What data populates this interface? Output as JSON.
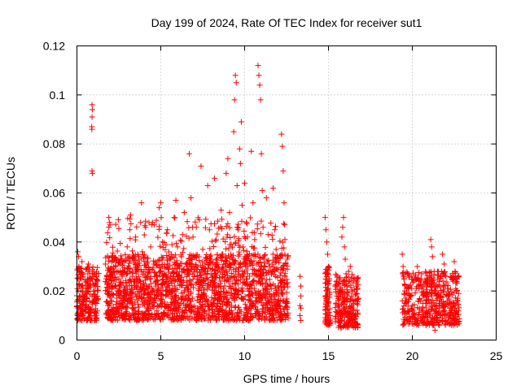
{
  "chart_data": {
    "type": "scatter",
    "title": "Day 199 of 2024, Rate Of TEC Index for receiver sut1",
    "xlabel": "GPS time / hours",
    "ylabel": "ROTI / TECUs",
    "xlim": [
      0,
      25
    ],
    "ylim": [
      0,
      0.12
    ],
    "x_ticks": [
      "0",
      "5",
      "10",
      "15",
      "20",
      "25"
    ],
    "y_ticks": [
      "0",
      "0.02",
      "0.04",
      "0.06",
      "0.08",
      "0.1",
      "0.12"
    ],
    "grid": true,
    "marker": "+",
    "color": "#ff0000",
    "series": [
      {
        "name": "sut1",
        "points": [
          [
            0.05,
            0.036
          ],
          [
            0.1,
            0.034
          ],
          [
            0.12,
            0.03
          ],
          [
            0.2,
            0.028
          ],
          [
            0.25,
            0.025
          ],
          [
            0.3,
            0.032
          ],
          [
            0.15,
            0.022
          ],
          [
            0.35,
            0.02
          ],
          [
            0.4,
            0.018
          ],
          [
            0.22,
            0.015
          ],
          [
            0.3,
            0.012
          ],
          [
            0.1,
            0.01
          ],
          [
            0.45,
            0.009
          ],
          [
            0.5,
            0.014
          ],
          [
            0.55,
            0.019
          ],
          [
            0.6,
            0.024
          ],
          [
            0.65,
            0.027
          ],
          [
            0.7,
            0.022
          ],
          [
            0.75,
            0.016
          ],
          [
            0.8,
            0.012
          ],
          [
            0.85,
            0.009
          ],
          [
            0.9,
            0.018
          ],
          [
            0.95,
            0.023
          ],
          [
            1.0,
            0.026
          ],
          [
            1.05,
            0.02
          ],
          [
            1.1,
            0.015
          ],
          [
            1.15,
            0.011
          ],
          [
            1.2,
            0.024
          ],
          [
            1.25,
            0.017
          ],
          [
            0.58,
            0.008
          ],
          [
            0.68,
            0.031
          ],
          [
            0.9,
            0.096
          ],
          [
            0.92,
            0.094
          ],
          [
            0.9,
            0.091
          ],
          [
            0.88,
            0.087
          ],
          [
            0.89,
            0.086
          ],
          [
            0.9,
            0.069
          ],
          [
            0.92,
            0.068
          ],
          [
            1.7,
            0.031
          ],
          [
            1.75,
            0.025
          ],
          [
            1.8,
            0.019
          ],
          [
            1.85,
            0.014
          ],
          [
            1.9,
            0.01
          ],
          [
            1.95,
            0.022
          ],
          [
            2.0,
            0.028
          ],
          [
            1.9,
            0.05
          ],
          [
            1.95,
            0.048
          ],
          [
            1.9,
            0.046
          ],
          [
            2.05,
            0.016
          ],
          [
            2.1,
            0.012
          ],
          [
            2.15,
            0.008
          ],
          [
            2.2,
            0.024
          ],
          [
            2.3,
            0.03
          ],
          [
            2.4,
            0.02
          ],
          [
            2.5,
            0.015
          ],
          [
            2.6,
            0.033
          ],
          [
            2.7,
            0.026
          ],
          [
            2.8,
            0.018
          ],
          [
            2.9,
            0.011
          ],
          [
            3.0,
            0.038
          ],
          [
            3.1,
            0.029
          ],
          [
            3.15,
            0.045
          ],
          [
            3.2,
            0.051
          ],
          [
            3.25,
            0.021
          ],
          [
            3.3,
            0.013
          ],
          [
            3.4,
            0.034
          ],
          [
            3.5,
            0.042
          ],
          [
            3.6,
            0.025
          ],
          [
            3.7,
            0.017
          ],
          [
            3.8,
            0.048
          ],
          [
            3.85,
            0.056
          ],
          [
            3.9,
            0.036
          ],
          [
            4.0,
            0.028
          ],
          [
            4.1,
            0.046
          ],
          [
            4.2,
            0.019
          ],
          [
            4.3,
            0.012
          ],
          [
            4.4,
            0.038
          ],
          [
            4.5,
            0.048
          ],
          [
            4.6,
            0.031
          ],
          [
            4.7,
            0.022
          ],
          [
            4.8,
            0.014
          ],
          [
            4.9,
            0.054
          ],
          [
            5.0,
            0.056
          ],
          [
            5.1,
            0.04
          ],
          [
            5.2,
            0.027
          ],
          [
            5.3,
            0.018
          ],
          [
            5.4,
            0.045
          ],
          [
            5.5,
            0.034
          ],
          [
            5.6,
            0.024
          ],
          [
            5.7,
            0.011
          ],
          [
            5.8,
            0.05
          ],
          [
            5.9,
            0.057
          ],
          [
            6.0,
            0.038
          ],
          [
            6.1,
            0.026
          ],
          [
            6.2,
            0.015
          ],
          [
            6.3,
            0.043
          ],
          [
            6.4,
            0.052
          ],
          [
            6.5,
            0.031
          ],
          [
            6.6,
            0.021
          ],
          [
            6.7,
            0.076
          ],
          [
            6.8,
            0.058
          ],
          [
            6.9,
            0.046
          ],
          [
            7.0,
            0.034
          ],
          [
            7.1,
            0.023
          ],
          [
            7.2,
            0.013
          ],
          [
            7.3,
            0.049
          ],
          [
            7.4,
            0.071
          ],
          [
            7.5,
            0.037
          ],
          [
            7.6,
            0.027
          ],
          [
            7.7,
            0.018
          ],
          [
            7.8,
            0.063
          ],
          [
            7.9,
            0.045
          ],
          [
            8.0,
            0.032
          ],
          [
            8.1,
            0.022
          ],
          [
            8.2,
            0.066
          ],
          [
            8.3,
            0.041
          ],
          [
            8.4,
            0.028
          ],
          [
            8.5,
            0.016
          ],
          [
            8.6,
            0.053
          ],
          [
            8.7,
            0.035
          ],
          [
            8.8,
            0.024
          ],
          [
            8.9,
            0.068
          ],
          [
            9.0,
            0.074
          ],
          [
            9.1,
            0.052
          ],
          [
            9.2,
            0.039
          ],
          [
            9.3,
            0.026
          ],
          [
            9.35,
            0.085
          ],
          [
            9.4,
            0.098
          ],
          [
            9.45,
            0.108
          ],
          [
            9.5,
            0.105
          ],
          [
            9.55,
            0.063
          ],
          [
            9.6,
            0.045
          ],
          [
            9.65,
            0.031
          ],
          [
            9.7,
            0.078
          ],
          [
            9.75,
            0.072
          ],
          [
            9.8,
            0.089
          ],
          [
            9.85,
            0.055
          ],
          [
            9.9,
            0.038
          ],
          [
            9.95,
            0.027
          ],
          [
            10.0,
            0.064
          ],
          [
            10.1,
            0.048
          ],
          [
            10.2,
            0.034
          ],
          [
            10.3,
            0.022
          ],
          [
            10.4,
            0.077
          ],
          [
            10.5,
            0.056
          ],
          [
            10.6,
            0.041
          ],
          [
            10.7,
            0.028
          ],
          [
            10.8,
            0.112
          ],
          [
            10.85,
            0.108
          ],
          [
            10.9,
            0.104
          ],
          [
            10.95,
            0.098
          ],
          [
            11.0,
            0.076
          ],
          [
            11.05,
            0.061
          ],
          [
            11.1,
            0.046
          ],
          [
            11.15,
            0.033
          ],
          [
            11.2,
            0.021
          ],
          [
            11.3,
            0.058
          ],
          [
            11.4,
            0.043
          ],
          [
            11.5,
            0.03
          ],
          [
            11.6,
            0.018
          ],
          [
            11.7,
            0.062
          ],
          [
            11.8,
            0.045
          ],
          [
            11.9,
            0.032
          ],
          [
            12.0,
            0.021
          ],
          [
            12.1,
            0.014
          ],
          [
            12.2,
            0.084
          ],
          [
            12.25,
            0.079
          ],
          [
            12.3,
            0.069
          ],
          [
            12.35,
            0.056
          ],
          [
            12.4,
            0.041
          ],
          [
            12.45,
            0.031
          ],
          [
            12.5,
            0.023
          ],
          [
            12.55,
            0.015
          ],
          [
            12.6,
            0.009
          ],
          [
            13.3,
            0.026
          ],
          [
            13.35,
            0.022
          ],
          [
            13.35,
            0.018
          ],
          [
            13.3,
            0.014
          ],
          [
            13.35,
            0.013
          ],
          [
            13.3,
            0.01
          ],
          [
            13.35,
            0.008
          ],
          [
            14.8,
            0.05
          ],
          [
            14.85,
            0.045
          ],
          [
            14.9,
            0.04
          ],
          [
            14.95,
            0.035
          ],
          [
            15.0,
            0.03
          ],
          [
            15.05,
            0.025
          ],
          [
            14.9,
            0.02
          ],
          [
            15.0,
            0.015
          ],
          [
            15.1,
            0.01
          ],
          [
            15.05,
            0.007
          ],
          [
            15.4,
            0.022
          ],
          [
            15.5,
            0.018
          ],
          [
            15.6,
            0.014
          ],
          [
            15.7,
            0.011
          ],
          [
            15.8,
            0.042
          ],
          [
            15.85,
            0.046
          ],
          [
            15.9,
            0.05
          ],
          [
            15.95,
            0.038
          ],
          [
            16.0,
            0.033
          ],
          [
            16.05,
            0.027
          ],
          [
            16.1,
            0.022
          ],
          [
            16.15,
            0.017
          ],
          [
            16.2,
            0.013
          ],
          [
            16.25,
            0.009
          ],
          [
            16.3,
            0.007
          ],
          [
            16.35,
            0.025
          ],
          [
            16.4,
            0.02
          ],
          [
            16.45,
            0.016
          ],
          [
            16.5,
            0.012
          ],
          [
            16.55,
            0.01
          ],
          [
            16.6,
            0.005
          ],
          [
            16.65,
            0.019
          ],
          [
            16.7,
            0.015
          ],
          [
            16.75,
            0.011
          ],
          [
            16.2,
            0.028
          ],
          [
            16.3,
            0.03
          ],
          [
            19.4,
            0.035
          ],
          [
            19.45,
            0.03
          ],
          [
            19.5,
            0.025
          ],
          [
            19.55,
            0.02
          ],
          [
            19.6,
            0.015
          ],
          [
            19.65,
            0.011
          ],
          [
            19.7,
            0.008
          ],
          [
            19.8,
            0.022
          ],
          [
            19.9,
            0.018
          ],
          [
            20.0,
            0.014
          ],
          [
            20.1,
            0.011
          ],
          [
            20.2,
            0.025
          ],
          [
            20.3,
            0.03
          ],
          [
            20.4,
            0.021
          ],
          [
            20.5,
            0.016
          ],
          [
            20.6,
            0.012
          ],
          [
            20.7,
            0.009
          ],
          [
            20.8,
            0.024
          ],
          [
            20.9,
            0.019
          ],
          [
            21.0,
            0.015
          ],
          [
            21.1,
            0.041
          ],
          [
            21.15,
            0.038
          ],
          [
            21.2,
            0.034
          ],
          [
            21.3,
            0.028
          ],
          [
            21.4,
            0.022
          ],
          [
            21.5,
            0.017
          ],
          [
            21.6,
            0.013
          ],
          [
            21.7,
            0.01
          ],
          [
            21.8,
            0.035
          ],
          [
            21.9,
            0.031
          ],
          [
            22.0,
            0.026
          ],
          [
            22.1,
            0.021
          ],
          [
            22.2,
            0.016
          ],
          [
            22.3,
            0.012
          ],
          [
            22.4,
            0.009
          ],
          [
            22.5,
            0.032
          ],
          [
            22.55,
            0.028
          ],
          [
            22.6,
            0.024
          ],
          [
            22.65,
            0.02
          ],
          [
            22.7,
            0.016
          ],
          [
            22.75,
            0.012
          ],
          [
            22.5,
            0.008
          ],
          [
            21.25,
            0.006
          ],
          [
            21.35,
            0.004
          ]
        ],
        "dense_bands": [
          {
            "x_range": [
              0.0,
              1.3
            ],
            "y_range": [
              0.008,
              0.03
            ],
            "count": 200
          },
          {
            "x_range": [
              1.7,
              12.6
            ],
            "y_range": [
              0.008,
              0.035
            ],
            "count": 1500
          },
          {
            "x_range": [
              1.7,
              12.6
            ],
            "y_range": [
              0.01,
              0.05
            ],
            "count": 400
          },
          {
            "x_range": [
              14.8,
              15.1
            ],
            "y_range": [
              0.006,
              0.03
            ],
            "count": 80
          },
          {
            "x_range": [
              15.4,
              16.8
            ],
            "y_range": [
              0.005,
              0.027
            ],
            "count": 220
          },
          {
            "x_range": [
              19.4,
              22.8
            ],
            "y_range": [
              0.006,
              0.028
            ],
            "count": 450
          }
        ]
      }
    ]
  }
}
